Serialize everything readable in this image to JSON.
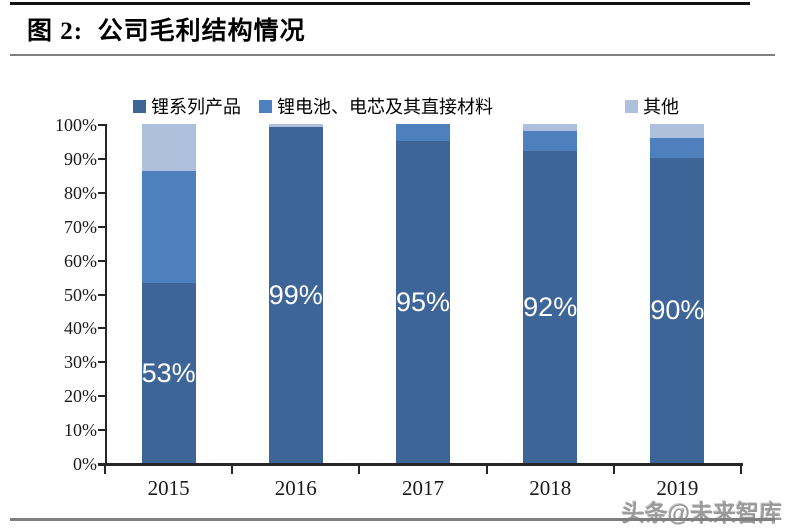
{
  "header": {
    "title": "图 2:  公司毛利结构情况"
  },
  "watermark": {
    "text": "头条@未来智库"
  },
  "chart_data": {
    "type": "bar",
    "stacked": true,
    "title": "公司毛利结构情况",
    "categories": [
      "2015",
      "2016",
      "2017",
      "2018",
      "2019"
    ],
    "series": [
      {
        "name": "锂系列产品",
        "color": "#3E6598",
        "values": [
          53,
          99,
          95,
          92,
          90
        ]
      },
      {
        "name": "锂电池、电芯及其直接材料",
        "color": "#4E80BE",
        "values": [
          33,
          0,
          5,
          6,
          6
        ]
      },
      {
        "name": "其他",
        "color": "#AEC0DC",
        "values": [
          14,
          1,
          0,
          2,
          4
        ]
      }
    ],
    "data_labels": [
      "53%",
      "99%",
      "95%",
      "92%",
      "90%"
    ],
    "data_label_series": "锂系列产品",
    "data_label_color": "#ffffff",
    "xlabel": "",
    "ylabel": "",
    "ylim": [
      0,
      100
    ],
    "yticks": [
      "0%",
      "10%",
      "20%",
      "30%",
      "40%",
      "50%",
      "60%",
      "70%",
      "80%",
      "90%",
      "100%"
    ],
    "legend_position": "top",
    "grid": false,
    "axis_color": "#262626"
  }
}
